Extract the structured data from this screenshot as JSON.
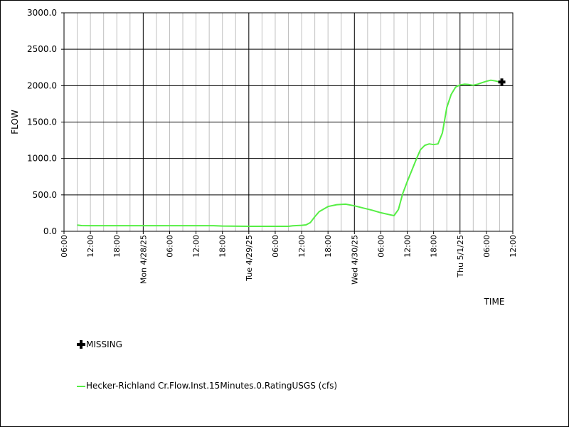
{
  "colors": {
    "series": "#55ee44",
    "grid_major": "#000000",
    "grid_minor": "#c0c0c0",
    "missing_marker": "#000000"
  },
  "chart_data": {
    "type": "line",
    "xlabel": "TIME",
    "ylabel": "FLOW",
    "ylim": [
      0,
      3000
    ],
    "y_ticks": [
      "0.0",
      "500.0",
      "1000.0",
      "1500.0",
      "2000.0",
      "2500.0",
      "3000.0"
    ],
    "x_range": [
      "2025-04-27T06:00",
      "2025-05-01T12:00"
    ],
    "x_ticks": [
      {
        "t": "2025-04-27T06:00",
        "label": "06:00",
        "major": false
      },
      {
        "t": "2025-04-27T12:00",
        "label": "12:00",
        "major": false
      },
      {
        "t": "2025-04-27T18:00",
        "label": "18:00",
        "major": false
      },
      {
        "t": "2025-04-28T00:00",
        "label": "Mon 4/28/25",
        "major": true
      },
      {
        "t": "2025-04-28T06:00",
        "label": "06:00",
        "major": false
      },
      {
        "t": "2025-04-28T12:00",
        "label": "12:00",
        "major": false
      },
      {
        "t": "2025-04-28T18:00",
        "label": "18:00",
        "major": false
      },
      {
        "t": "2025-04-29T00:00",
        "label": "Tue 4/29/25",
        "major": true
      },
      {
        "t": "2025-04-29T06:00",
        "label": "06:00",
        "major": false
      },
      {
        "t": "2025-04-29T12:00",
        "label": "12:00",
        "major": false
      },
      {
        "t": "2025-04-29T18:00",
        "label": "18:00",
        "major": false
      },
      {
        "t": "2025-04-30T00:00",
        "label": "Wed 4/30/25",
        "major": true
      },
      {
        "t": "2025-04-30T06:00",
        "label": "06:00",
        "major": false
      },
      {
        "t": "2025-04-30T12:00",
        "label": "12:00",
        "major": false
      },
      {
        "t": "2025-04-30T18:00",
        "label": "18:00",
        "major": false
      },
      {
        "t": "2025-05-01T00:00",
        "label": "Thu 5/1/25",
        "major": true
      },
      {
        "t": "2025-05-01T06:00",
        "label": "06:00",
        "major": false
      },
      {
        "t": "2025-05-01T12:00",
        "label": "12:00",
        "major": false
      }
    ],
    "series": [
      {
        "name": "Hecker-Richland Cr.Flow.Inst.15Minutes.0.RatingUSGS (cfs)",
        "color": "#55ee44",
        "points": [
          [
            "2025-04-27T09:00",
            85
          ],
          [
            "2025-04-27T10:00",
            78
          ],
          [
            "2025-04-27T12:00",
            77
          ],
          [
            "2025-04-27T18:00",
            77
          ],
          [
            "2025-04-28T00:00",
            77
          ],
          [
            "2025-04-28T06:00",
            77
          ],
          [
            "2025-04-28T12:00",
            77
          ],
          [
            "2025-04-28T16:00",
            77
          ],
          [
            "2025-04-28T18:00",
            72
          ],
          [
            "2025-04-29T00:00",
            68
          ],
          [
            "2025-04-29T06:00",
            68
          ],
          [
            "2025-04-29T09:00",
            68
          ],
          [
            "2025-04-29T10:00",
            75
          ],
          [
            "2025-04-29T12:00",
            82
          ],
          [
            "2025-04-29T13:00",
            88
          ],
          [
            "2025-04-29T14:00",
            120
          ],
          [
            "2025-04-29T15:00",
            200
          ],
          [
            "2025-04-29T16:00",
            270
          ],
          [
            "2025-04-29T18:00",
            340
          ],
          [
            "2025-04-29T20:00",
            365
          ],
          [
            "2025-04-29T22:00",
            372
          ],
          [
            "2025-04-30T00:00",
            350
          ],
          [
            "2025-04-30T02:00",
            320
          ],
          [
            "2025-04-30T04:00",
            290
          ],
          [
            "2025-04-30T06:00",
            255
          ],
          [
            "2025-04-30T08:00",
            228
          ],
          [
            "2025-04-30T09:00",
            215
          ],
          [
            "2025-04-30T10:00",
            300
          ],
          [
            "2025-04-30T11:00",
            520
          ],
          [
            "2025-04-30T12:00",
            680
          ],
          [
            "2025-04-30T13:00",
            830
          ],
          [
            "2025-04-30T14:00",
            980
          ],
          [
            "2025-04-30T15:00",
            1120
          ],
          [
            "2025-04-30T16:00",
            1180
          ],
          [
            "2025-04-30T17:00",
            1200
          ],
          [
            "2025-04-30T18:00",
            1190
          ],
          [
            "2025-04-30T19:00",
            1200
          ],
          [
            "2025-04-30T20:00",
            1350
          ],
          [
            "2025-04-30T21:00",
            1700
          ],
          [
            "2025-04-30T22:00",
            1880
          ],
          [
            "2025-04-30T23:00",
            1980
          ],
          [
            "2025-05-01T00:00",
            2010
          ],
          [
            "2025-05-01T01:00",
            2020
          ],
          [
            "2025-05-01T02:00",
            2015
          ],
          [
            "2025-05-01T03:00",
            2005
          ],
          [
            "2025-05-01T04:00",
            2020
          ],
          [
            "2025-05-01T05:00",
            2040
          ],
          [
            "2025-05-01T06:00",
            2060
          ],
          [
            "2025-05-01T07:00",
            2075
          ],
          [
            "2025-05-01T08:00",
            2065
          ],
          [
            "2025-05-01T09:00",
            2050
          ]
        ]
      }
    ],
    "missing": [
      {
        "t": "2025-05-01T09:30",
        "y": 2050
      }
    ],
    "legend": [
      {
        "kind": "marker",
        "symbol": "plus-icon",
        "label": "MISSING"
      },
      {
        "kind": "line",
        "label": "Hecker-Richland Cr.Flow.Inst.15Minutes.0.RatingUSGS (cfs)"
      }
    ]
  }
}
